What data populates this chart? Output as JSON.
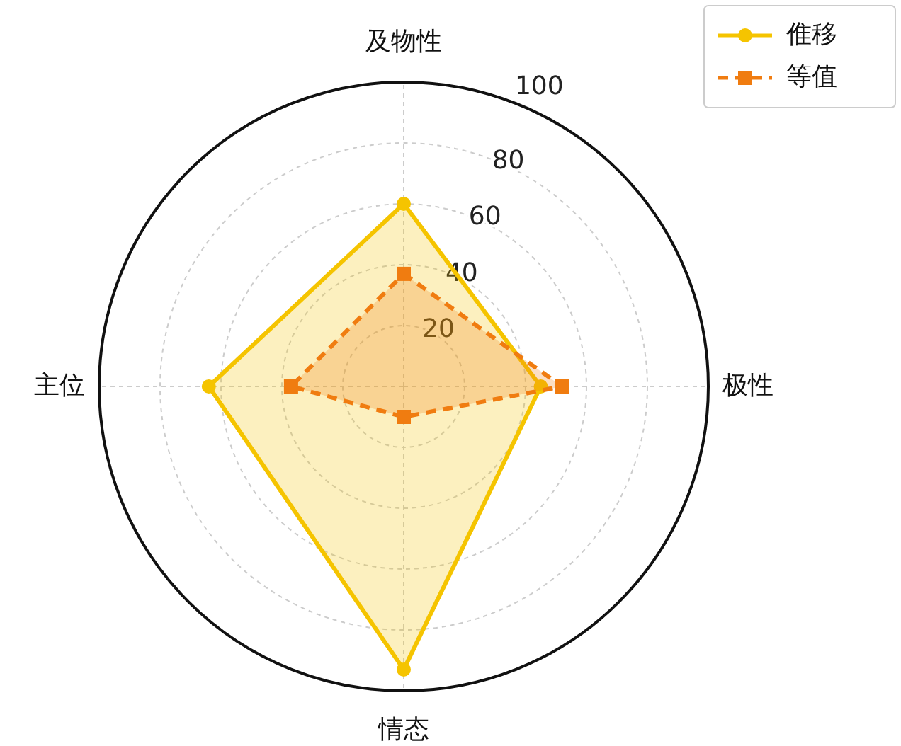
{
  "chart_data": {
    "type": "radar",
    "categories": [
      "及物性",
      "极性",
      "情态",
      "主位"
    ],
    "series": [
      {
        "name": "倠移",
        "color": "#f5c400",
        "values": [
          60,
          45,
          93,
          64
        ],
        "marker": "circle",
        "line_style": "solid"
      },
      {
        "name": "等值",
        "color": "#f07c10",
        "values": [
          37,
          52,
          10,
          37
        ],
        "marker": "square",
        "line_style": "dashed"
      }
    ],
    "ylim": [
      0,
      100
    ],
    "yticks": [
      20,
      40,
      60,
      80,
      100
    ],
    "grid": true,
    "legend": "top right"
  }
}
